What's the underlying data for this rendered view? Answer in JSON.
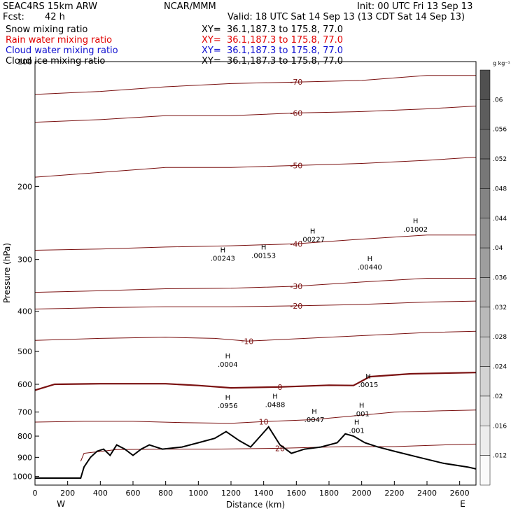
{
  "header": {
    "model": "SEAC4RS 15km ARW",
    "center": "NCAR/MMM",
    "init": "Init: 00 UTC Fri 13 Sep 13",
    "fcst_label": "Fcst:",
    "fcst_value": "42 h",
    "valid": "Valid: 18 UTC Sat 14 Sep 13 (13 CDT Sat 14 Sep 13)"
  },
  "fields": [
    {
      "name": "Snow mixing ratio",
      "xy": "XY=  36.1,187.3 to 175.8, 77.0",
      "color": "#000000"
    },
    {
      "name": "Rain water mixing ratio",
      "xy": "XY=  36.1,187.3 to 175.8, 77.0",
      "color": "#e00000"
    },
    {
      "name": "Cloud water mixing ratio",
      "xy": "XY=  36.1,187.3 to 175.8, 77.0",
      "color": "#1010d0"
    },
    {
      "name": "Cloud ice mixing ratio",
      "xy": "XY=  36.1,187.3 to 175.8, 77.0",
      "color": "#000000"
    }
  ],
  "chart_data": {
    "type": "contour",
    "xlabel": "Distance (km)",
    "ylabel": "Pressure (hPa)",
    "xlim": [
      0,
      2700
    ],
    "ylim": [
      1050,
      100
    ],
    "y_scale": "log",
    "x_ticks": [
      0,
      200,
      400,
      600,
      800,
      1000,
      1200,
      1400,
      1600,
      1800,
      2000,
      2200,
      2400,
      2600
    ],
    "y_ticks": [
      100,
      200,
      300,
      400,
      500,
      600,
      700,
      800,
      900,
      1000
    ],
    "x_end_labels": {
      "left": "W",
      "right": "E"
    },
    "colorbar": {
      "unit": "g kg⁻¹",
      "ticks": [
        ".06",
        ".056",
        ".052",
        ".048",
        ".044",
        ".04",
        ".036",
        ".032",
        ".028",
        ".024",
        ".02",
        ".016",
        ".012"
      ]
    },
    "temperature_contours": [
      {
        "value": -70,
        "points": [
          [
            0,
            120
          ],
          [
            400,
            118
          ],
          [
            800,
            115
          ],
          [
            1200,
            113
          ],
          [
            1600,
            112
          ],
          [
            2000,
            111
          ],
          [
            2400,
            108
          ],
          [
            2700,
            108
          ]
        ]
      },
      {
        "value": -60,
        "points": [
          [
            0,
            140
          ],
          [
            400,
            138
          ],
          [
            800,
            135
          ],
          [
            1200,
            135
          ],
          [
            1600,
            133
          ],
          [
            2000,
            132
          ],
          [
            2400,
            130
          ],
          [
            2700,
            128
          ]
        ]
      },
      {
        "value": -50,
        "points": [
          [
            0,
            190
          ],
          [
            400,
            185
          ],
          [
            800,
            180
          ],
          [
            1200,
            180
          ],
          [
            1600,
            178
          ],
          [
            2000,
            176
          ],
          [
            2400,
            173
          ],
          [
            2700,
            170
          ]
        ]
      },
      {
        "value": -40,
        "points": [
          [
            0,
            285
          ],
          [
            400,
            283
          ],
          [
            800,
            280
          ],
          [
            1200,
            278
          ],
          [
            1600,
            275
          ],
          [
            2000,
            268
          ],
          [
            2400,
            262
          ],
          [
            2700,
            262
          ]
        ]
      },
      {
        "value": -30,
        "points": [
          [
            0,
            360
          ],
          [
            400,
            357
          ],
          [
            800,
            353
          ],
          [
            1200,
            352
          ],
          [
            1600,
            348
          ],
          [
            2000,
            340
          ],
          [
            2400,
            333
          ],
          [
            2700,
            333
          ]
        ]
      },
      {
        "value": -20,
        "points": [
          [
            0,
            395
          ],
          [
            400,
            392
          ],
          [
            800,
            390
          ],
          [
            1200,
            390
          ],
          [
            1600,
            388
          ],
          [
            2000,
            385
          ],
          [
            2400,
            380
          ],
          [
            2700,
            378
          ]
        ]
      },
      {
        "value": -10,
        "points": [
          [
            0,
            470
          ],
          [
            400,
            465
          ],
          [
            800,
            462
          ],
          [
            1100,
            465
          ],
          [
            1300,
            472
          ],
          [
            1600,
            466
          ],
          [
            2000,
            458
          ],
          [
            2400,
            450
          ],
          [
            2700,
            447
          ]
        ]
      },
      {
        "value": 0,
        "points": [
          [
            0,
            620
          ],
          [
            120,
            600
          ],
          [
            400,
            598
          ],
          [
            800,
            598
          ],
          [
            1000,
            604
          ],
          [
            1200,
            612
          ],
          [
            1500,
            609
          ],
          [
            1800,
            603
          ],
          [
            1950,
            604
          ],
          [
            2050,
            575
          ],
          [
            2300,
            566
          ],
          [
            2700,
            562
          ]
        ]
      },
      {
        "value": 10,
        "points": [
          [
            0,
            740
          ],
          [
            300,
            737
          ],
          [
            600,
            737
          ],
          [
            900,
            742
          ],
          [
            1200,
            745
          ],
          [
            1400,
            738
          ],
          [
            1700,
            730
          ],
          [
            1900,
            718
          ],
          [
            2200,
            700
          ],
          [
            2500,
            695
          ],
          [
            2700,
            692
          ]
        ]
      },
      {
        "value": 20,
        "points": [
          [
            280,
            920
          ],
          [
            300,
            880
          ],
          [
            500,
            862
          ],
          [
            800,
            860
          ],
          [
            1100,
            860
          ],
          [
            1500,
            856
          ],
          [
            1900,
            848
          ],
          [
            2200,
            848
          ],
          [
            2500,
            840
          ],
          [
            2700,
            836
          ]
        ]
      }
    ],
    "maxima_labels": [
      {
        "x": 1150,
        "p": 300,
        "label": ".00243"
      },
      {
        "x": 1400,
        "p": 295,
        "label": ".00153"
      },
      {
        "x": 1700,
        "p": 270,
        "label": ".00227"
      },
      {
        "x": 2050,
        "p": 315,
        "label": ".00440"
      },
      {
        "x": 2330,
        "p": 255,
        "label": ".01002"
      },
      {
        "x": 1180,
        "p": 540,
        "label": ".0004"
      },
      {
        "x": 2040,
        "p": 605,
        "label": ".0015"
      },
      {
        "x": 1180,
        "p": 680,
        "label": ".0956"
      },
      {
        "x": 1470,
        "p": 675,
        "label": ".0488"
      },
      {
        "x": 1710,
        "p": 735,
        "label": ".0047"
      },
      {
        "x": 2000,
        "p": 710,
        "label": ".001"
      },
      {
        "x": 1970,
        "p": 780,
        "label": ".001"
      }
    ],
    "terrain": [
      [
        0,
        1010
      ],
      [
        280,
        1010
      ],
      [
        300,
        950
      ],
      [
        340,
        900
      ],
      [
        380,
        870
      ],
      [
        420,
        860
      ],
      [
        460,
        890
      ],
      [
        500,
        840
      ],
      [
        550,
        860
      ],
      [
        600,
        890
      ],
      [
        650,
        860
      ],
      [
        700,
        840
      ],
      [
        780,
        860
      ],
      [
        900,
        850
      ],
      [
        1000,
        830
      ],
      [
        1100,
        810
      ],
      [
        1170,
        780
      ],
      [
        1250,
        820
      ],
      [
        1320,
        850
      ],
      [
        1380,
        800
      ],
      [
        1430,
        760
      ],
      [
        1500,
        840
      ],
      [
        1570,
        880
      ],
      [
        1650,
        860
      ],
      [
        1750,
        850
      ],
      [
        1850,
        830
      ],
      [
        1900,
        790
      ],
      [
        1950,
        800
      ],
      [
        2020,
        830
      ],
      [
        2100,
        850
      ],
      [
        2200,
        870
      ],
      [
        2350,
        900
      ],
      [
        2500,
        930
      ],
      [
        2650,
        950
      ],
      [
        2700,
        960
      ]
    ]
  }
}
